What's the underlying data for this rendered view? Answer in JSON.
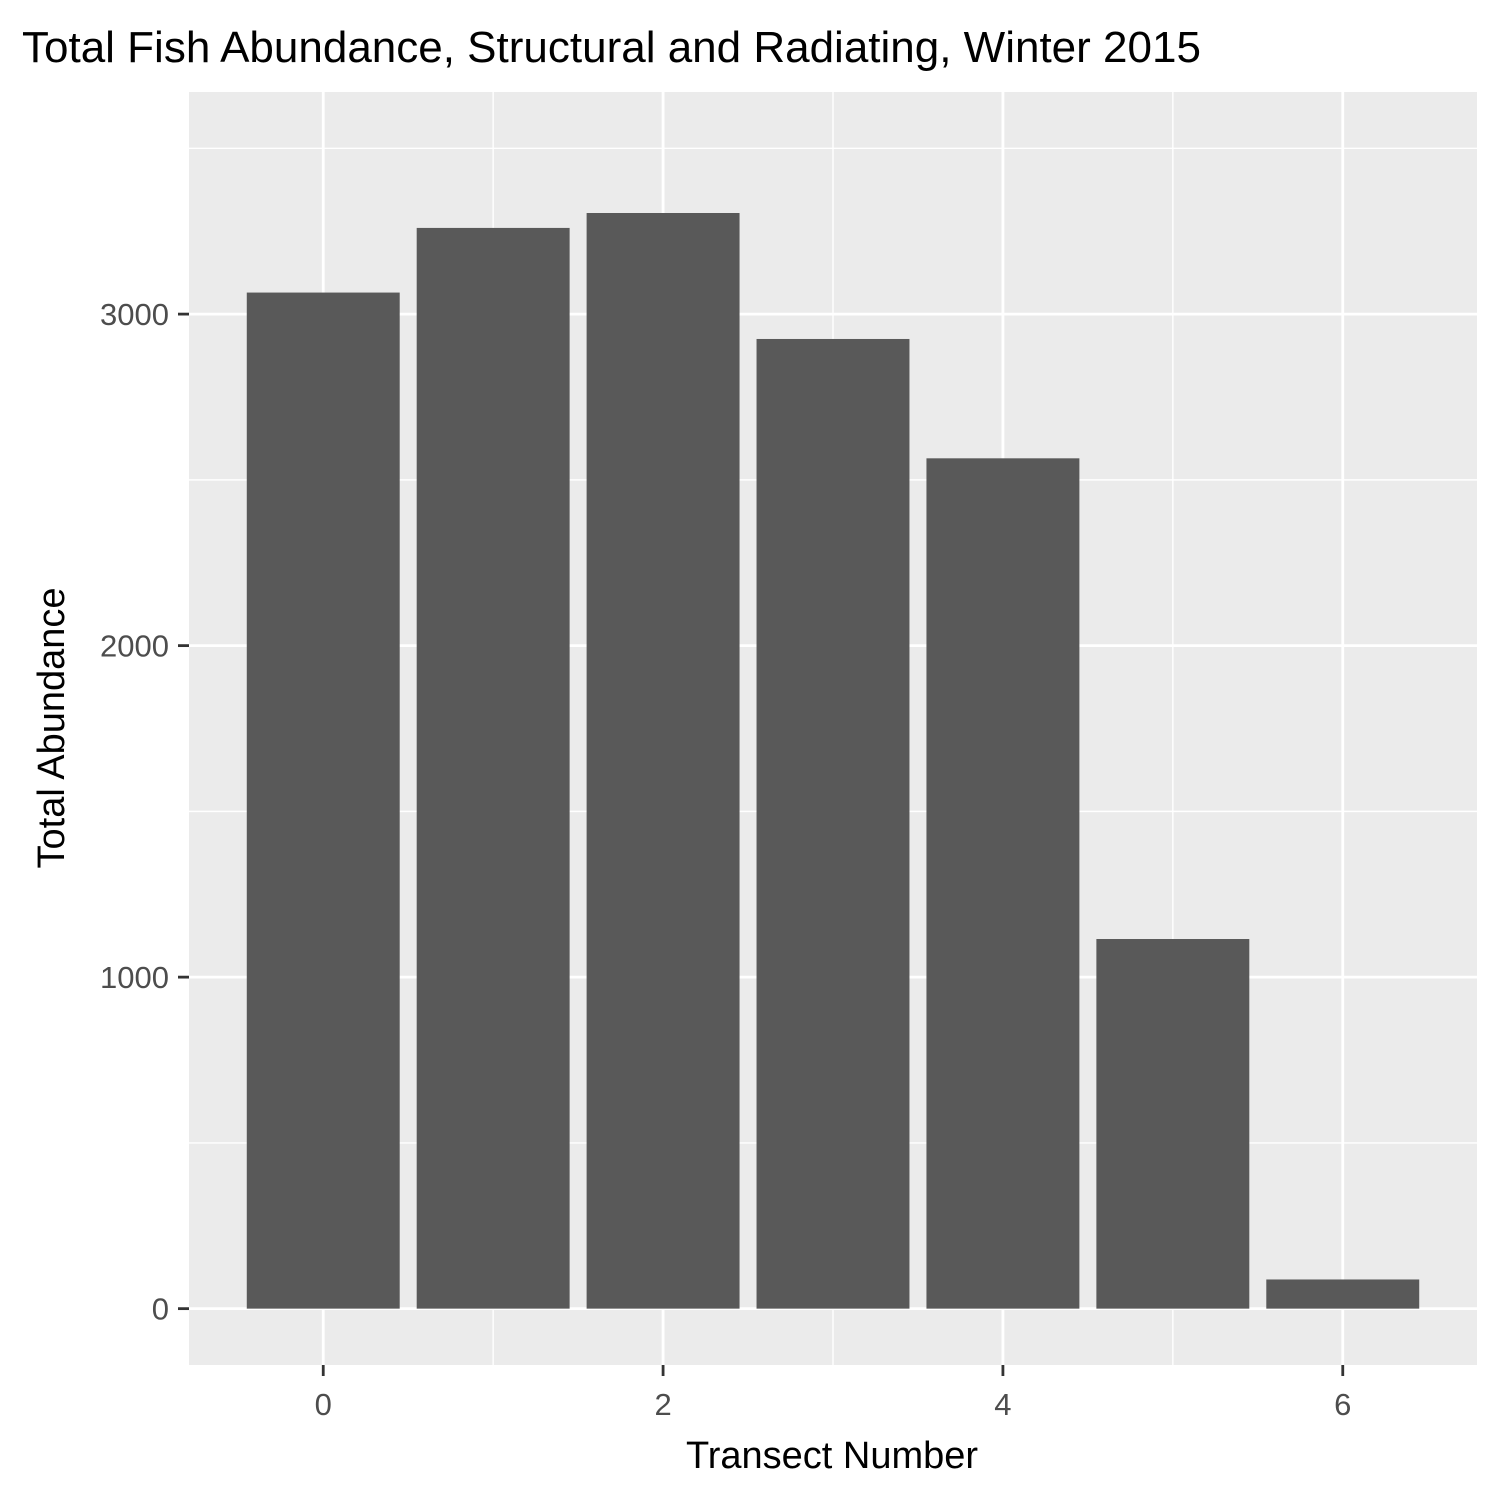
{
  "colors": {
    "panel_background": "#ebebeb",
    "grid_major": "#ffffff",
    "grid_minor": "#ffffff",
    "bar_fill": "#595959",
    "tick_mark": "#333333",
    "tick_label": "#4d4d4d",
    "text": "#000000"
  },
  "chart_data": {
    "type": "bar",
    "title": "Total Fish Abundance, Structural and Radiating, Winter 2015",
    "xlabel": "Transect Number",
    "ylabel": "Total Abundance",
    "categories": [
      0,
      1,
      2,
      3,
      4,
      5,
      6
    ],
    "values": [
      3065,
      3260,
      3305,
      2925,
      2565,
      1115,
      88
    ],
    "xlim": [
      -0.79,
      6.79
    ],
    "ylim": [
      -170,
      3670
    ],
    "x_ticks": [
      0,
      2,
      4,
      6
    ],
    "x_tick_labels": [
      "0",
      "2",
      "4",
      "6"
    ],
    "y_ticks": [
      0,
      1000,
      2000,
      3000
    ],
    "y_tick_labels": [
      "0",
      "1000",
      "2000",
      "3000"
    ],
    "x_minor_grid": [
      1,
      3,
      5
    ],
    "y_minor_grid": [
      500,
      1500,
      2500,
      3500
    ],
    "bar_width": 0.9,
    "grid": true,
    "legend": "none"
  }
}
